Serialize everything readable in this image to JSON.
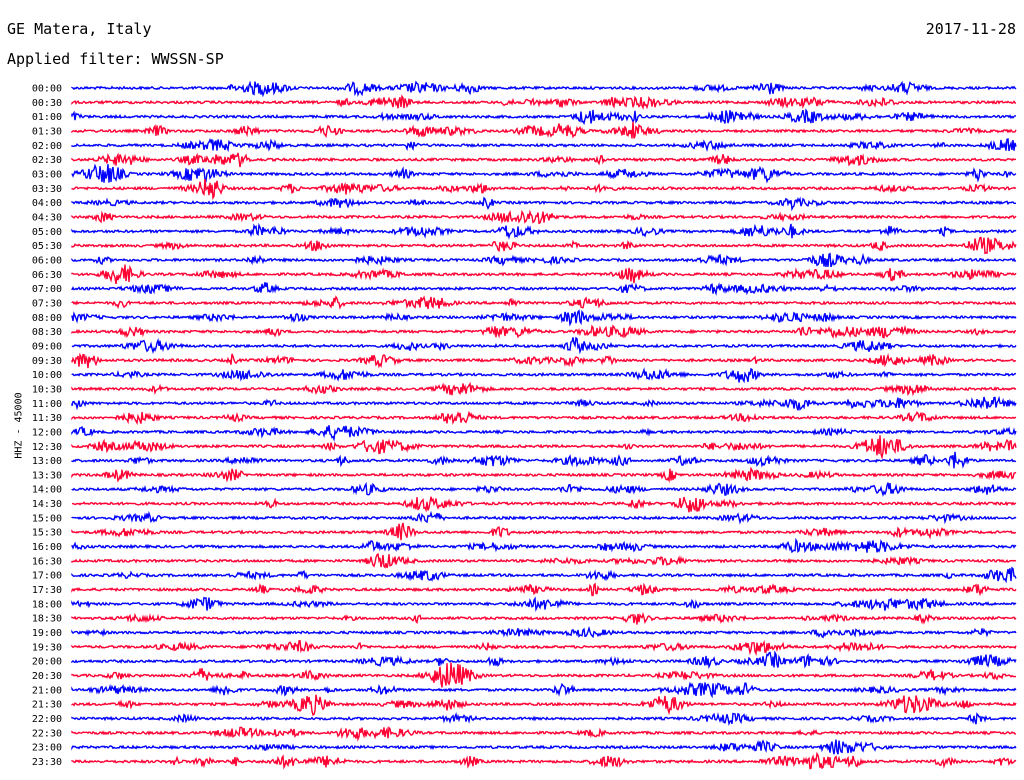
{
  "header": {
    "station": "GE Matera, Italy",
    "date": "2017-11-28",
    "filter": "Applied filter: WWSSN-SP"
  },
  "chart_data": {
    "type": "line",
    "title": "GE Matera, Italy",
    "subtitle": "Applied filter: WWSSN-SP",
    "ylabel": "HHZ - 45000",
    "xlabel": "",
    "row_interval_minutes": 30,
    "row_labels": [
      "00:00",
      "00:30",
      "01:00",
      "01:30",
      "02:00",
      "02:30",
      "03:00",
      "03:30",
      "04:00",
      "04:30",
      "05:00",
      "05:30",
      "06:00",
      "06:30",
      "07:00",
      "07:30",
      "08:00",
      "08:30",
      "09:00",
      "09:30",
      "10:00",
      "10:30",
      "11:00",
      "11:30",
      "12:00",
      "12:30",
      "13:00",
      "13:30",
      "14:00",
      "14:30",
      "15:00",
      "15:30",
      "16:00",
      "16:30",
      "17:00",
      "17:30",
      "18:00",
      "18:30",
      "19:00",
      "19:30",
      "20:00",
      "20:30",
      "21:00",
      "21:30",
      "22:00",
      "22:30",
      "23:00",
      "23:30"
    ],
    "colors": [
      "#0000ff",
      "#ff0033"
    ],
    "grid": false,
    "legend": "none"
  }
}
